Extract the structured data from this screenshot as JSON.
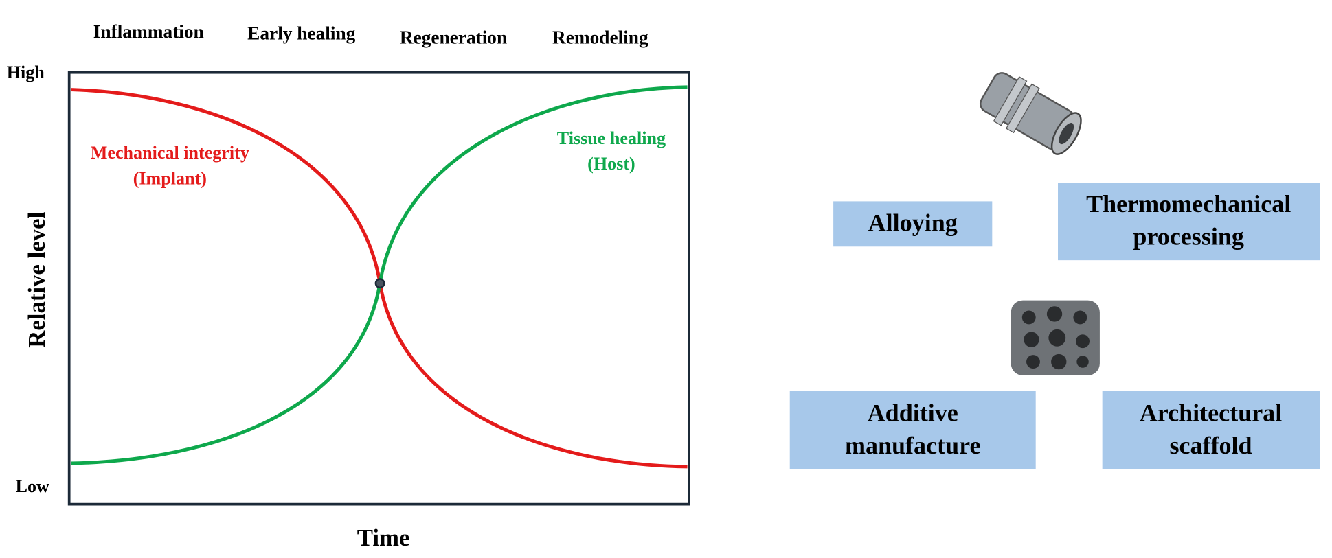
{
  "phases": [
    "Inflammation",
    "Early healing",
    "Regeneration",
    "Remodeling"
  ],
  "axes": {
    "y_high": "High",
    "y_low": "Low",
    "y_label": "Relative level",
    "x_label": "Time"
  },
  "curves": [
    {
      "lines": [
        "Mechanical integrity",
        "(Implant)"
      ]
    },
    {
      "lines": [
        "Tissue healing",
        "(Host)"
      ]
    }
  ],
  "boxes": [
    {
      "lines": [
        "Alloying"
      ]
    },
    {
      "lines": [
        "Thermomechanical",
        "processing"
      ]
    },
    {
      "lines": [
        "Additive",
        "manufacture"
      ]
    },
    {
      "lines": [
        "Architectural",
        "scaffold"
      ]
    }
  ]
}
